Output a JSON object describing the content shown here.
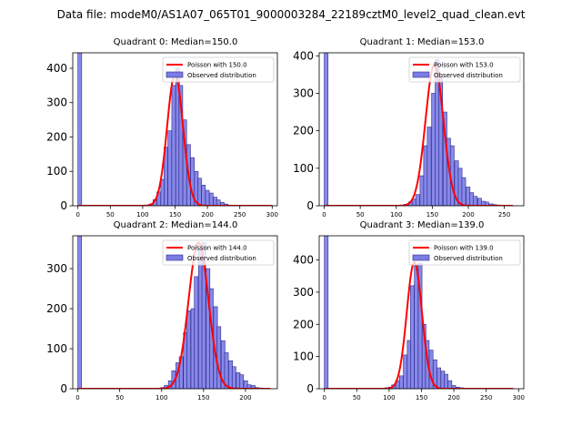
{
  "figure": {
    "suptitle": "Data file: modeM0/AS1A07_065T01_9000003284_22189cztM0_level2_quad_clean.evt"
  },
  "style": {
    "hist_fill": "#7b7be6",
    "hist_edge": "#2c2c90",
    "poisson_color": "#ff0000"
  },
  "chart_data": [
    {
      "type": "bar",
      "title": "Quadrant 0: Median=150.0",
      "xlim": [
        -8,
        308
      ],
      "ylim": [
        0,
        445
      ],
      "xticks": [
        0,
        50,
        100,
        150,
        200,
        250,
        300
      ],
      "yticks": [
        0,
        100,
        200,
        300,
        400
      ],
      "bin_width": 5.8,
      "hist": [
        [
          0,
          445
        ],
        [
          87,
          1
        ],
        [
          93,
          1
        ],
        [
          99,
          1
        ],
        [
          104,
          2
        ],
        [
          110,
          5
        ],
        [
          116,
          18
        ],
        [
          122,
          40
        ],
        [
          128,
          77
        ],
        [
          133,
          170
        ],
        [
          139,
          218
        ],
        [
          145,
          350
        ],
        [
          151,
          400
        ],
        [
          156,
          350
        ],
        [
          162,
          250
        ],
        [
          168,
          178
        ],
        [
          174,
          140
        ],
        [
          180,
          100
        ],
        [
          185,
          80
        ],
        [
          191,
          60
        ],
        [
          197,
          45
        ],
        [
          203,
          37
        ],
        [
          209,
          25
        ],
        [
          214,
          17
        ],
        [
          220,
          10
        ],
        [
          226,
          5
        ],
        [
          232,
          2
        ]
      ],
      "poisson": {
        "mean": 150.0,
        "peak": 383,
        "sigma": 12.2,
        "x_start": 0,
        "x_end": 300
      },
      "legend": {
        "poisson_label": "Poisson with 150.0",
        "hist_label": "Observed distribution",
        "loc": "upper right"
      }
    },
    {
      "type": "bar",
      "title": "Quadrant 1: Median=153.0",
      "xlim": [
        -7,
        277
      ],
      "ylim": [
        0,
        408
      ],
      "xticks": [
        0,
        50,
        100,
        150,
        200,
        250
      ],
      "yticks": [
        0,
        100,
        200,
        300,
        400
      ],
      "bin_width": 5.3,
      "hist": [
        [
          0,
          408
        ],
        [
          106,
          2
        ],
        [
          111,
          4
        ],
        [
          117,
          10
        ],
        [
          122,
          18
        ],
        [
          127,
          30
        ],
        [
          133,
          80
        ],
        [
          138,
          160
        ],
        [
          143,
          210
        ],
        [
          149,
          300
        ],
        [
          154,
          390
        ],
        [
          159,
          345
        ],
        [
          165,
          250
        ],
        [
          170,
          180
        ],
        [
          175,
          160
        ],
        [
          181,
          120
        ],
        [
          186,
          100
        ],
        [
          191,
          75
        ],
        [
          197,
          50
        ],
        [
          202,
          35
        ],
        [
          207,
          25
        ],
        [
          213,
          20
        ],
        [
          218,
          12
        ],
        [
          223,
          10
        ],
        [
          229,
          5
        ],
        [
          234,
          3
        ],
        [
          239,
          2
        ]
      ],
      "poisson": {
        "mean": 153.0,
        "peak": 377,
        "sigma": 12.4,
        "x_start": 0,
        "x_end": 262
      },
      "legend": {
        "poisson_label": "Poisson with 153.0",
        "hist_label": "Observed distribution",
        "loc": "upper right"
      }
    },
    {
      "type": "bar",
      "title": "Quadrant 2: Median=144.0",
      "xlim": [
        -6,
        238
      ],
      "ylim": [
        0,
        382
      ],
      "xticks": [
        0,
        50,
        100,
        150,
        200
      ],
      "yticks": [
        0,
        100,
        200,
        300
      ],
      "bin_width": 4.55,
      "hist": [
        [
          0,
          382
        ],
        [
          85,
          1
        ],
        [
          94,
          1
        ],
        [
          99,
          3
        ],
        [
          103,
          8
        ],
        [
          108,
          20
        ],
        [
          112,
          45
        ],
        [
          117,
          65
        ],
        [
          121,
          80
        ],
        [
          126,
          140
        ],
        [
          130,
          195
        ],
        [
          135,
          200
        ],
        [
          139,
          280
        ],
        [
          144,
          350
        ],
        [
          148,
          365
        ],
        [
          153,
          300
        ],
        [
          157,
          250
        ],
        [
          162,
          205
        ],
        [
          166,
          155
        ],
        [
          171,
          120
        ],
        [
          175,
          90
        ],
        [
          180,
          70
        ],
        [
          184,
          55
        ],
        [
          189,
          40
        ],
        [
          193,
          35
        ],
        [
          198,
          20
        ],
        [
          202,
          10
        ],
        [
          207,
          8
        ],
        [
          211,
          3
        ],
        [
          216,
          2
        ]
      ],
      "poisson": {
        "mean": 144.0,
        "peak": 365,
        "sigma": 11.9,
        "x_start": 0,
        "x_end": 230
      },
      "legend": {
        "poisson_label": "Poisson with 144.0",
        "hist_label": "Observed distribution",
        "loc": "upper right"
      }
    },
    {
      "type": "bar",
      "title": "Quadrant 3: Median=139.0",
      "xlim": [
        -8,
        308
      ],
      "ylim": [
        0,
        475
      ],
      "xticks": [
        0,
        50,
        100,
        150,
        200,
        250,
        300
      ],
      "yticks": [
        0,
        100,
        200,
        300,
        400
      ],
      "bin_width": 5.8,
      "hist": [
        [
          0,
          475
        ],
        [
          81,
          1
        ],
        [
          87,
          2
        ],
        [
          93,
          3
        ],
        [
          99,
          5
        ],
        [
          104,
          12
        ],
        [
          110,
          25
        ],
        [
          116,
          40
        ],
        [
          122,
          105
        ],
        [
          128,
          150
        ],
        [
          133,
          320
        ],
        [
          139,
          385
        ],
        [
          145,
          390
        ],
        [
          151,
          200
        ],
        [
          156,
          150
        ],
        [
          162,
          120
        ],
        [
          168,
          90
        ],
        [
          174,
          65
        ],
        [
          180,
          55
        ],
        [
          185,
          45
        ],
        [
          191,
          25
        ],
        [
          197,
          10
        ],
        [
          203,
          5
        ],
        [
          209,
          3
        ],
        [
          214,
          2
        ],
        [
          220,
          1
        ]
      ],
      "poisson": {
        "mean": 139.0,
        "peak": 393,
        "sigma": 11.7,
        "x_start": 0,
        "x_end": 292
      },
      "legend": {
        "poisson_label": "Poisson with 139.0",
        "hist_label": "Observed distribution",
        "loc": "upper right"
      }
    }
  ]
}
